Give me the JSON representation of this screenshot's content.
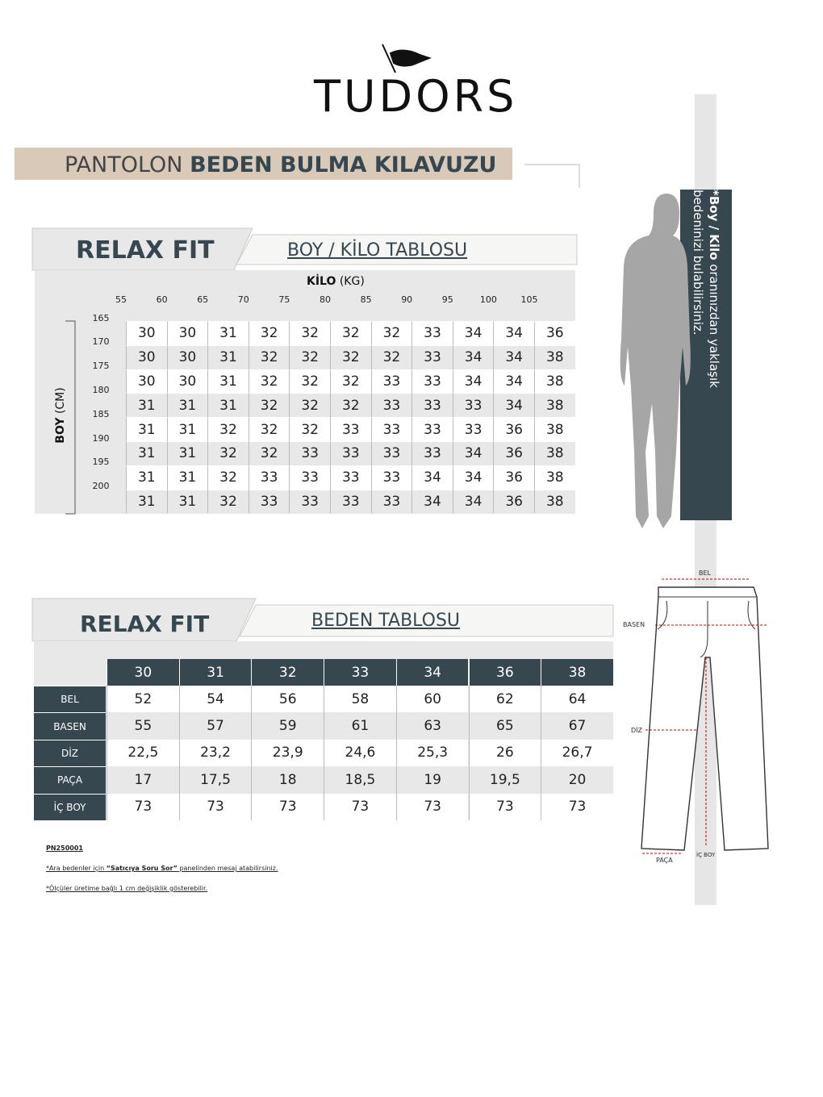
{
  "header": {
    "brand": "TUDORS",
    "title_light": "PANTOLON",
    "title_bold": "BEDEN BULMA KILAVUZU"
  },
  "side_note": {
    "bold": "*Boy / Kilo",
    "line1": "oranınızdan yaklaşık",
    "line2": "bedeninizi bulabilirsiniz."
  },
  "boy_kilo": {
    "fit": "RELAX FIT",
    "title": "BOY / KİLO TABLOSU",
    "kilo_label": "KİLO",
    "kilo_unit": "(KG)",
    "boy_label": "BOY",
    "boy_unit": "(CM)",
    "kilo_ticks": [
      "55",
      "60",
      "65",
      "70",
      "75",
      "80",
      "85",
      "90",
      "95",
      "100",
      "105"
    ],
    "boy_ticks": [
      "165",
      "170",
      "175",
      "180",
      "185",
      "190",
      "195",
      "200"
    ],
    "rows": [
      [
        "30",
        "30",
        "31",
        "32",
        "32",
        "32",
        "32",
        "33",
        "34",
        "34",
        "36"
      ],
      [
        "30",
        "30",
        "31",
        "32",
        "32",
        "32",
        "32",
        "33",
        "34",
        "34",
        "38"
      ],
      [
        "30",
        "30",
        "31",
        "32",
        "32",
        "32",
        "33",
        "33",
        "34",
        "34",
        "38"
      ],
      [
        "31",
        "31",
        "31",
        "32",
        "32",
        "32",
        "33",
        "33",
        "33",
        "34",
        "38"
      ],
      [
        "31",
        "31",
        "32",
        "32",
        "32",
        "33",
        "33",
        "33",
        "33",
        "36",
        "38"
      ],
      [
        "31",
        "31",
        "32",
        "32",
        "33",
        "33",
        "33",
        "33",
        "34",
        "36",
        "38"
      ],
      [
        "31",
        "31",
        "32",
        "33",
        "33",
        "33",
        "33",
        "34",
        "34",
        "36",
        "38"
      ],
      [
        "31",
        "31",
        "32",
        "33",
        "33",
        "33",
        "33",
        "34",
        "34",
        "36",
        "38"
      ]
    ]
  },
  "beden": {
    "fit": "RELAX FIT",
    "title": "BEDEN TABLOSU",
    "sizes": [
      "30",
      "31",
      "32",
      "33",
      "34",
      "36",
      "38"
    ],
    "rows": [
      {
        "label": "BEL",
        "values": [
          "52",
          "54",
          "56",
          "58",
          "60",
          "62",
          "64"
        ]
      },
      {
        "label": "BASEN",
        "values": [
          "55",
          "57",
          "59",
          "61",
          "63",
          "65",
          "67"
        ]
      },
      {
        "label": "DİZ",
        "values": [
          "22,5",
          "23,2",
          "23,9",
          "24,6",
          "25,3",
          "26",
          "26,7"
        ]
      },
      {
        "label": "PAÇA",
        "values": [
          "17",
          "17,5",
          "18",
          "18,5",
          "19",
          "19,5",
          "20"
        ]
      },
      {
        "label": "İÇ BOY",
        "values": [
          "73",
          "73",
          "73",
          "73",
          "73",
          "73",
          "73"
        ]
      }
    ]
  },
  "notes": {
    "code": "PN250001",
    "note1_a": "*Ara bedenler için",
    "note1_b": "“Satıcıya Soru Sor”",
    "note1_c": "panelinden mesaj atabilirsiniz.",
    "note2": "*Ölçüler üretime bağlı 1 cm değişiklik gösterebilir."
  },
  "diagram": {
    "bel": "BEL",
    "basen": "BASEN",
    "diz": "DİZ",
    "paca": "PAÇA",
    "ic_boy": "İÇ BOY"
  }
}
